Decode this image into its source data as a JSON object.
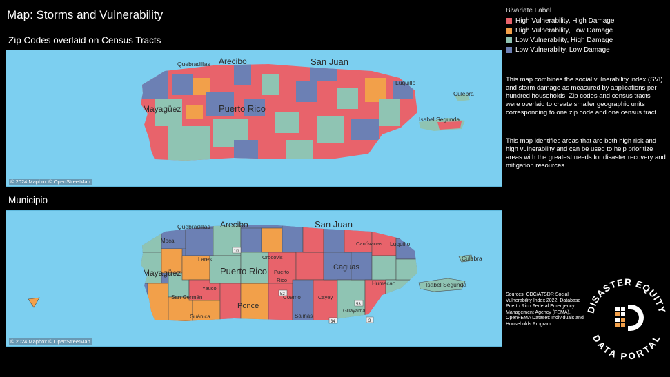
{
  "title": "Map: Storms and Vulnerability",
  "map_top": {
    "subtitle": "Zip Codes overlaid on Census Tracts",
    "attribution": "© 2024 Mapbox © OpenStreetMap",
    "places": {
      "quebradillas": "Quebradillas",
      "arecibo": "Arecibo",
      "san_juan": "San Juan",
      "luquillo": "Luquillo",
      "culebra": "Culebra",
      "mayaguez": "Mayagüez",
      "puerto_rico": "Puerto Rico",
      "isabel_segunda": "Isabel Segunda"
    }
  },
  "map_bottom": {
    "subtitle": "Municipio",
    "attribution": "© 2024 Mapbox © OpenStreetMap",
    "places": {
      "quebradillas": "Quebradillas",
      "arecibo": "Arecibo",
      "san_juan": "San Juan",
      "luquillo": "Luquillo",
      "culebra": "Culebra",
      "mayaguez": "Mayagüez",
      "puerto_rico": "Puerto Rico",
      "isabel_segunda": "Isabel Segunda",
      "caguas": "Caguas",
      "ponce": "Ponce",
      "san_german": "San Germán",
      "guanica": "Guánica",
      "salinas": "Salinas",
      "coamo": "Coamo",
      "humacao": "Humacao",
      "lares": "Lares",
      "moca": "Moca",
      "canovanas": "Canóvanas",
      "guayama": "Guayama",
      "yauco": "Yauco",
      "cayey": "Cayey",
      "orocovis": "Orocovis",
      "rico_label": "Rico",
      "puerto_label": "Puerto"
    },
    "route_labels": [
      "10",
      "52",
      "53",
      "3",
      "34"
    ]
  },
  "legend": {
    "title": "Bivariate Label",
    "items": [
      {
        "label": "High Vulnerability, High Damage",
        "color": "#e8636b"
      },
      {
        "label": "High Vulnerability, Low Damage",
        "color": "#f2a04a"
      },
      {
        "label": "Low Vulnerability, High Damage",
        "color": "#8fc4b3"
      },
      {
        "label": "Low Vulnerabilty, Low Damage",
        "color": "#6c80b4"
      }
    ]
  },
  "description": {
    "p1": "This map combines the social vulnerability index (SVI) and storm damage as measured by applications per hundred households. Zip codes and census tracts were overlaid to create smaller geographic units corresponding to one zip code and one census tract.",
    "p2": "This map identifies areas that are both high risk and high vulnerability and can be used to help prioritize areas with the greatest needs for disaster recovery and mitigation resources."
  },
  "sources": "Sources: CDC/ATSDR Social Vulnerability Index  2022, Database Puerto Rico Federal Emergency Management Agency (FEMA). OpenFEMA Dataset: Individuals and Households Program",
  "logo": {
    "top_text": "DISASTER EQUITY",
    "bottom_text": "DATA PORTAL"
  }
}
